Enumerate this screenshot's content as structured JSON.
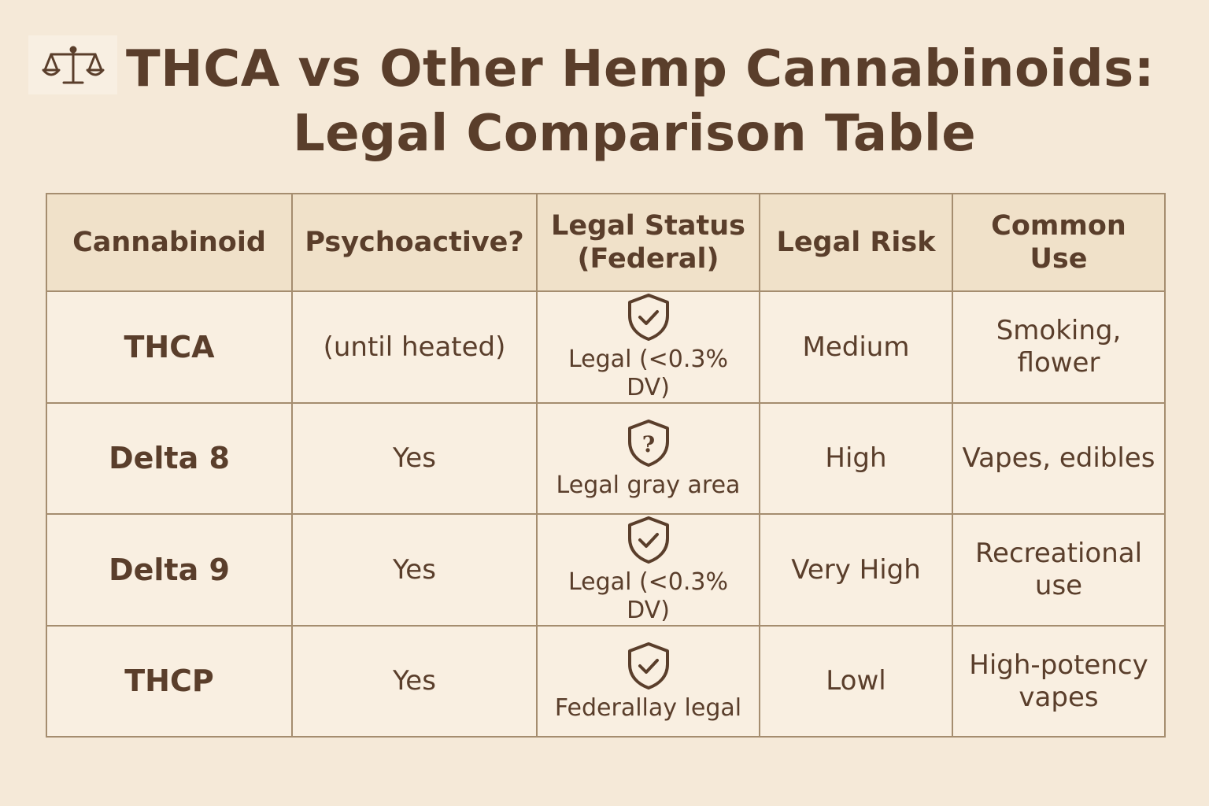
{
  "header": {
    "icon": "scales-icon",
    "title_line1": "THCA vs Other Hemp Cannabinoids:",
    "title_line2": "Legal Comparison Table"
  },
  "table": {
    "columns": [
      "Cannabinoid",
      "Psychoactive?",
      "Legal Status\n(Federal)",
      "Legal Risk",
      "Common Use"
    ],
    "rows": [
      {
        "cannabinoid": "THCA",
        "psychoactive": "(until heated)",
        "status_icon": "shield-check-icon",
        "legal_status": "Legal (<0.3% DV)",
        "legal_risk": "Medium",
        "common_use": "Smoking, flower"
      },
      {
        "cannabinoid": "Delta 8",
        "psychoactive": "Yes",
        "status_icon": "shield-question-icon",
        "legal_status": "Legal gray area",
        "legal_risk": "High",
        "common_use": "Vapes, edibles"
      },
      {
        "cannabinoid": "Delta 9",
        "psychoactive": "Yes",
        "status_icon": "shield-check-icon",
        "legal_status": "Legal (<0.3% DV)",
        "legal_risk": "Very High",
        "common_use": "Recreational use"
      },
      {
        "cannabinoid": "THCP",
        "psychoactive": "Yes",
        "status_icon": "shield-check-icon",
        "legal_status": "Federallay legal",
        "legal_risk": "Lowl",
        "common_use": "High-potency vapes"
      }
    ]
  },
  "colors": {
    "background": "#f5e9d8",
    "header_fill": "#f0e1c9",
    "text": "#5a3e2b",
    "border": "#a58d6f"
  }
}
